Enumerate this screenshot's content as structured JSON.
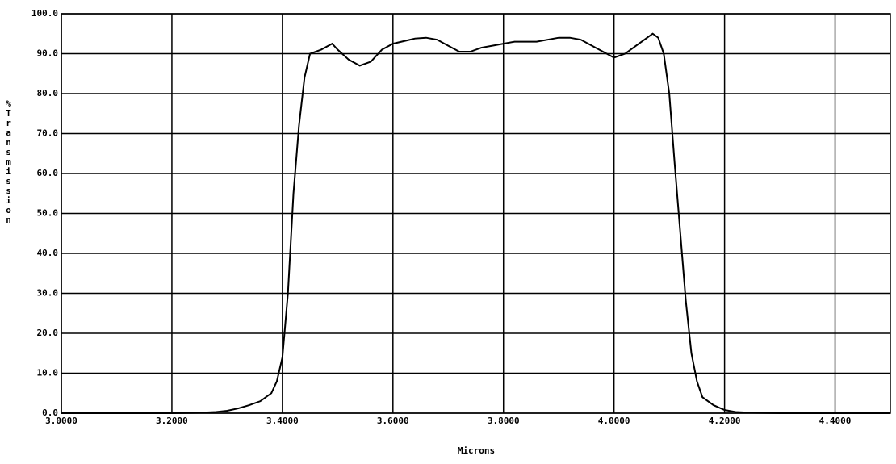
{
  "chart_data": {
    "type": "line",
    "x_label": "Microns",
    "y_label": "%Transmission",
    "xlim": [
      3.0,
      4.5
    ],
    "ylim": [
      0,
      100
    ],
    "xticks": [
      {
        "value": 3.0,
        "label": "3.0000"
      },
      {
        "value": 3.2,
        "label": "3.2000"
      },
      {
        "value": 3.4,
        "label": "3.4000"
      },
      {
        "value": 3.6,
        "label": "3.6000"
      },
      {
        "value": 3.8,
        "label": "3.8000"
      },
      {
        "value": 4.0,
        "label": "4.0000"
      },
      {
        "value": 4.2,
        "label": "4.2000"
      },
      {
        "value": 4.4,
        "label": "4.4000"
      }
    ],
    "yticks": [
      {
        "value": 0,
        "label": "0.0"
      },
      {
        "value": 10,
        "label": "10.0"
      },
      {
        "value": 20,
        "label": "20.0"
      },
      {
        "value": 30,
        "label": "30.0"
      },
      {
        "value": 40,
        "label": "40.0"
      },
      {
        "value": 50,
        "label": "50.0"
      },
      {
        "value": 60,
        "label": "60.0"
      },
      {
        "value": 70,
        "label": "70.0"
      },
      {
        "value": 80,
        "label": "80.0"
      },
      {
        "value": 90,
        "label": "90.0"
      },
      {
        "value": 100,
        "label": "100.0"
      }
    ],
    "grid": true,
    "x": [
      3.0,
      3.1,
      3.2,
      3.25,
      3.28,
      3.3,
      3.32,
      3.34,
      3.36,
      3.38,
      3.39,
      3.4,
      3.41,
      3.42,
      3.43,
      3.44,
      3.45,
      3.47,
      3.49,
      3.5,
      3.52,
      3.54,
      3.56,
      3.58,
      3.6,
      3.64,
      3.66,
      3.68,
      3.7,
      3.72,
      3.74,
      3.76,
      3.78,
      3.8,
      3.82,
      3.86,
      3.9,
      3.92,
      3.94,
      3.96,
      3.98,
      4.0,
      4.02,
      4.04,
      4.06,
      4.07,
      4.08,
      4.09,
      4.1,
      4.11,
      4.12,
      4.13,
      4.14,
      4.15,
      4.16,
      4.18,
      4.2,
      4.22,
      4.25,
      4.3,
      4.5
    ],
    "series": [
      {
        "color": "#000000",
        "values": [
          0,
          0,
          0,
          0.1,
          0.3,
          0.6,
          1.2,
          2,
          3,
          5,
          8,
          14,
          30,
          55,
          72,
          84,
          90,
          91,
          92.5,
          91,
          88.5,
          87,
          88,
          91,
          92.5,
          93.8,
          94,
          93.5,
          92,
          90.5,
          90.5,
          91.5,
          92,
          92.5,
          93,
          93,
          94,
          94,
          93.5,
          92,
          90.5,
          89,
          90,
          92,
          94,
          95,
          94,
          90,
          80,
          62,
          45,
          28,
          15,
          8,
          4,
          2,
          0.8,
          0.3,
          0.1,
          0,
          0
        ]
      }
    ]
  }
}
